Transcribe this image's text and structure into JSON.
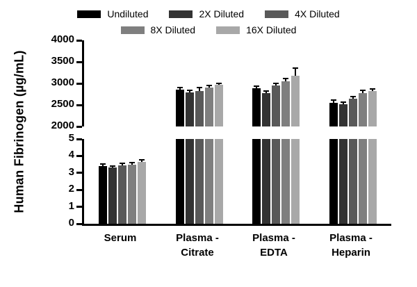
{
  "legend": [
    {
      "label": "Undiluted",
      "color": "#000000"
    },
    {
      "label": "2X Diluted",
      "color": "#333333"
    },
    {
      "label": "4X Diluted",
      "color": "#595959"
    },
    {
      "label": "8X Diluted",
      "color": "#7f7f7f"
    },
    {
      "label": "16X Diluted",
      "color": "#a8a8a8"
    }
  ],
  "chart_data": {
    "type": "bar",
    "title": "",
    "ylabel": "Human Fibrinogen (µg/mL)",
    "xlabel": "",
    "legend_position": "top",
    "grid": false,
    "categories": [
      "Serum",
      "Plasma -\nCitrate",
      "Plasma -\nEDTA",
      "Plasma -\nHeparin"
    ],
    "series": [
      {
        "name": "Undiluted",
        "color": "#000000",
        "values": [
          3.4,
          2850,
          2890,
          2550
        ],
        "errors": [
          0.08,
          30,
          35,
          40
        ]
      },
      {
        "name": "2X Diluted",
        "color": "#333333",
        "values": [
          3.3,
          2790,
          2780,
          2520
        ],
        "errors": [
          0.06,
          25,
          30,
          35
        ]
      },
      {
        "name": "4X Diluted",
        "color": "#595959",
        "values": [
          3.45,
          2820,
          2950,
          2650
        ],
        "errors": [
          0.06,
          70,
          35,
          30
        ]
      },
      {
        "name": "8X Diluted",
        "color": "#7f7f7f",
        "values": [
          3.5,
          2900,
          3050,
          2770
        ],
        "errors": [
          0.07,
          35,
          40,
          60
        ]
      },
      {
        "name": "16X Diluted",
        "color": "#a8a8a8",
        "values": [
          3.65,
          2960,
          3180,
          2830
        ],
        "errors": [
          0.08,
          30,
          160,
          30
        ]
      }
    ],
    "axis_break": {
      "top_range": [
        2000,
        4000
      ],
      "top_ticks": [
        2000,
        2500,
        3000,
        3500,
        4000
      ],
      "bottom_range": [
        0,
        5
      ],
      "bottom_ticks": [
        0,
        1,
        2,
        3,
        4,
        5
      ]
    }
  }
}
